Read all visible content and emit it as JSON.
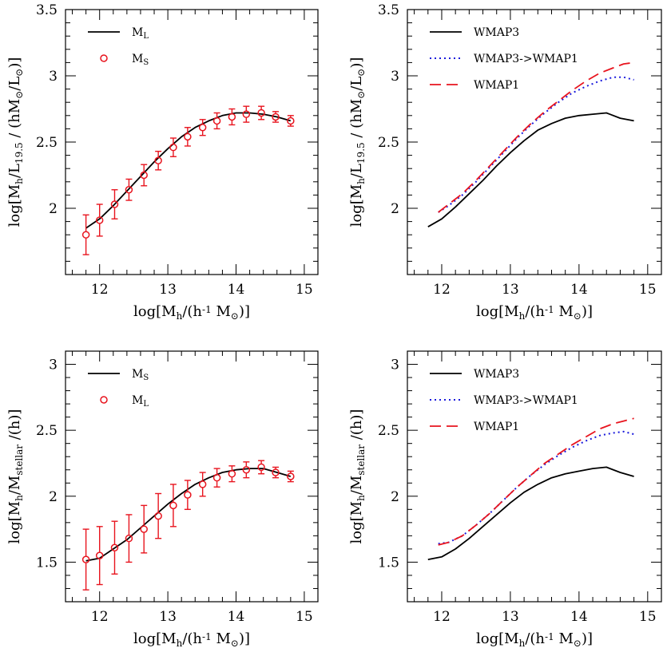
{
  "chart_data": [
    {
      "type": "line",
      "xlim": [
        11.5,
        15.2
      ],
      "ylim": [
        1.5,
        3.5
      ],
      "xticks": [
        "12",
        "13",
        "14",
        "15"
      ],
      "yticks": [
        "2",
        "2.5",
        "3",
        "3.5"
      ],
      "xlabel": "log[M_h/(h^-1 M_⊙)]",
      "ylabel": "log[M_h/L_19.5 / (hM_⊙/L_⊙)]",
      "legend_position": "top-left",
      "legend": [
        {
          "label": "M_L",
          "style": "line",
          "color": "#000000"
        },
        {
          "label": "M_S",
          "style": "marker",
          "color": "#e8141e"
        }
      ],
      "series": [
        {
          "style": "solid",
          "color": "#000000",
          "x": [
            11.8,
            12.0,
            12.2,
            12.4,
            12.6,
            12.8,
            13.0,
            13.2,
            13.4,
            13.6,
            13.8,
            14.0,
            14.2,
            14.4,
            14.6,
            14.8
          ],
          "y": [
            1.85,
            1.92,
            2.02,
            2.13,
            2.24,
            2.35,
            2.45,
            2.54,
            2.61,
            2.66,
            2.7,
            2.72,
            2.72,
            2.71,
            2.69,
            2.66
          ]
        }
      ],
      "points": {
        "color": "#e8141e",
        "x": [
          11.8,
          12.0,
          12.22,
          12.43,
          12.65,
          12.86,
          13.08,
          13.29,
          13.51,
          13.72,
          13.94,
          14.15,
          14.37,
          14.58,
          14.8
        ],
        "y": [
          1.8,
          1.91,
          2.03,
          2.14,
          2.25,
          2.36,
          2.46,
          2.54,
          2.61,
          2.66,
          2.69,
          2.71,
          2.72,
          2.69,
          2.66
        ],
        "err": [
          0.15,
          0.12,
          0.11,
          0.08,
          0.08,
          0.07,
          0.07,
          0.07,
          0.06,
          0.06,
          0.06,
          0.06,
          0.05,
          0.04,
          0.04
        ]
      }
    },
    {
      "type": "line",
      "xlim": [
        11.5,
        15.2
      ],
      "ylim": [
        1.5,
        3.5
      ],
      "xticks": [
        "12",
        "13",
        "14",
        "15"
      ],
      "yticks": [
        "2",
        "2.5",
        "3",
        "3.5"
      ],
      "xlabel": "log[M_h/(h^-1 M_⊙)]",
      "ylabel": "log[M_h/L_19.5 / (hM_⊙/L_⊙)]",
      "legend_position": "top-left",
      "legend": [
        {
          "label": "WMAP3",
          "style": "solid",
          "color": "#000000"
        },
        {
          "label": "WMAP3->WMAP1",
          "style": "dotted",
          "color": "#1a1adc"
        },
        {
          "label": "WMAP1",
          "style": "dashed",
          "color": "#e8141e"
        }
      ],
      "series": [
        {
          "style": "solid",
          "color": "#000000",
          "x": [
            11.8,
            12.0,
            12.2,
            12.4,
            12.6,
            12.8,
            13.0,
            13.2,
            13.4,
            13.6,
            13.8,
            14.0,
            14.2,
            14.4,
            14.6,
            14.8
          ],
          "y": [
            1.86,
            1.92,
            2.01,
            2.11,
            2.21,
            2.32,
            2.42,
            2.51,
            2.59,
            2.64,
            2.68,
            2.7,
            2.71,
            2.72,
            2.68,
            2.66
          ]
        },
        {
          "style": "dotted",
          "color": "#1a1adc",
          "x": [
            11.95,
            12.1,
            12.3,
            12.5,
            12.7,
            12.9,
            13.1,
            13.3,
            13.5,
            13.7,
            13.9,
            14.1,
            14.3,
            14.5,
            14.65,
            14.8
          ],
          "y": [
            1.97,
            2.02,
            2.1,
            2.2,
            2.31,
            2.42,
            2.53,
            2.63,
            2.72,
            2.8,
            2.87,
            2.92,
            2.96,
            2.99,
            2.99,
            2.97
          ]
        },
        {
          "style": "dashed",
          "color": "#e8141e",
          "x": [
            11.95,
            12.1,
            12.3,
            12.5,
            12.7,
            12.9,
            13.1,
            13.3,
            13.5,
            13.7,
            13.9,
            14.1,
            14.3,
            14.5,
            14.65,
            14.8
          ],
          "y": [
            1.97,
            2.03,
            2.11,
            2.21,
            2.32,
            2.43,
            2.54,
            2.64,
            2.73,
            2.81,
            2.89,
            2.96,
            3.02,
            3.06,
            3.09,
            3.1
          ]
        }
      ]
    },
    {
      "type": "line",
      "xlim": [
        11.5,
        15.2
      ],
      "ylim": [
        1.2,
        3.1
      ],
      "xticks": [
        "12",
        "13",
        "14",
        "15"
      ],
      "yticks": [
        "1.5",
        "2",
        "2.5",
        "3"
      ],
      "xlabel": "log[M_h/(h^-1 M_⊙)]",
      "ylabel": "log[M_h/M_stellar /(h)]",
      "legend_position": "top-left",
      "legend": [
        {
          "label": "M_S",
          "style": "line",
          "color": "#000000"
        },
        {
          "label": "M_L",
          "style": "marker",
          "color": "#e8141e"
        }
      ],
      "series": [
        {
          "style": "solid",
          "color": "#000000",
          "x": [
            11.8,
            12.0,
            12.2,
            12.4,
            12.6,
            12.8,
            13.0,
            13.2,
            13.4,
            13.6,
            13.8,
            14.0,
            14.2,
            14.4,
            14.6,
            14.8
          ],
          "y": [
            1.51,
            1.53,
            1.6,
            1.67,
            1.76,
            1.85,
            1.94,
            2.02,
            2.09,
            2.14,
            2.18,
            2.2,
            2.21,
            2.21,
            2.18,
            2.15
          ]
        }
      ],
      "points": {
        "color": "#e8141e",
        "x": [
          11.8,
          12.0,
          12.22,
          12.43,
          12.65,
          12.86,
          13.08,
          13.29,
          13.51,
          13.72,
          13.94,
          14.15,
          14.37,
          14.58,
          14.8
        ],
        "y": [
          1.52,
          1.55,
          1.61,
          1.68,
          1.75,
          1.85,
          1.93,
          2.01,
          2.09,
          2.14,
          2.17,
          2.2,
          2.22,
          2.18,
          2.15
        ],
        "err": [
          0.23,
          0.22,
          0.2,
          0.18,
          0.18,
          0.17,
          0.16,
          0.11,
          0.09,
          0.07,
          0.06,
          0.06,
          0.05,
          0.04,
          0.04
        ]
      }
    },
    {
      "type": "line",
      "xlim": [
        11.5,
        15.2
      ],
      "ylim": [
        1.2,
        3.1
      ],
      "xticks": [
        "12",
        "13",
        "14",
        "15"
      ],
      "yticks": [
        "1.5",
        "2",
        "2.5",
        "3"
      ],
      "xlabel": "log[M_h/(h^-1 M_⊙)]",
      "ylabel": "log[M_h/M_stellar /(h)]",
      "legend_position": "top-left",
      "legend": [
        {
          "label": "WMAP3",
          "style": "solid",
          "color": "#000000"
        },
        {
          "label": "WMAP3->WMAP1",
          "style": "dotted",
          "color": "#1a1adc"
        },
        {
          "label": "WMAP1",
          "style": "dashed",
          "color": "#e8141e"
        }
      ],
      "series": [
        {
          "style": "solid",
          "color": "#000000",
          "x": [
            11.8,
            12.0,
            12.2,
            12.4,
            12.6,
            12.8,
            13.0,
            13.2,
            13.4,
            13.6,
            13.8,
            14.0,
            14.2,
            14.4,
            14.6,
            14.8
          ],
          "y": [
            1.52,
            1.54,
            1.6,
            1.68,
            1.77,
            1.86,
            1.95,
            2.03,
            2.09,
            2.14,
            2.17,
            2.19,
            2.21,
            2.22,
            2.18,
            2.15
          ]
        },
        {
          "style": "dotted",
          "color": "#1a1adc",
          "x": [
            11.95,
            12.1,
            12.3,
            12.5,
            12.7,
            12.9,
            13.1,
            13.3,
            13.5,
            13.7,
            13.9,
            14.1,
            14.3,
            14.5,
            14.65,
            14.8
          ],
          "y": [
            1.64,
            1.65,
            1.7,
            1.78,
            1.87,
            1.97,
            2.07,
            2.16,
            2.24,
            2.31,
            2.37,
            2.42,
            2.46,
            2.48,
            2.49,
            2.47
          ]
        },
        {
          "style": "dashed",
          "color": "#e8141e",
          "x": [
            11.95,
            12.1,
            12.3,
            12.5,
            12.7,
            12.9,
            13.1,
            13.3,
            13.5,
            13.7,
            13.9,
            14.1,
            14.3,
            14.5,
            14.65,
            14.8
          ],
          "y": [
            1.63,
            1.65,
            1.7,
            1.78,
            1.87,
            1.97,
            2.07,
            2.16,
            2.25,
            2.32,
            2.39,
            2.45,
            2.51,
            2.55,
            2.57,
            2.59
          ]
        }
      ]
    }
  ]
}
